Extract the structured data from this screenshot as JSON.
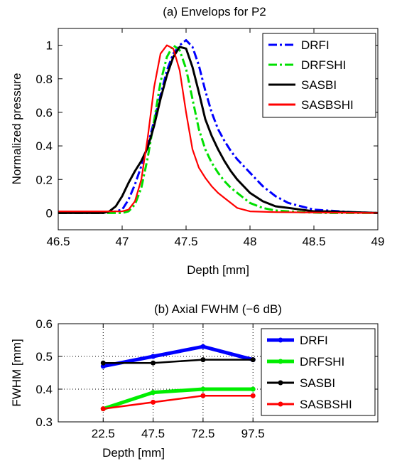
{
  "chart_data": [
    {
      "type": "line",
      "title": "(a) Envelops for P2",
      "xlabel": "Depth [mm]",
      "ylabel": "Normalized pressure",
      "xlim": [
        46.5,
        49
      ],
      "ylim": [
        -0.1,
        1.1
      ],
      "xticks": [
        46.5,
        47,
        47.5,
        48,
        48.5,
        49
      ],
      "yticks": [
        0,
        0.2,
        0.4,
        0.6,
        0.8,
        1
      ],
      "xtick_labels": [
        "46.5",
        "47",
        "47.5",
        "48",
        "48.5",
        "49"
      ],
      "ytick_labels": [
        "0",
        "0.2",
        "0.4",
        "0.6",
        "0.8",
        "1"
      ],
      "grid": false,
      "legend_position": "top-right",
      "series": [
        {
          "name": "DRFI",
          "color": "#0000ff",
          "dash": "dashdot",
          "x": [
            46.5,
            46.9,
            47.0,
            47.05,
            47.1,
            47.15,
            47.2,
            47.25,
            47.3,
            47.35,
            47.4,
            47.45,
            47.5,
            47.55,
            47.6,
            47.65,
            47.7,
            47.75,
            47.8,
            47.85,
            47.9,
            48.0,
            48.1,
            48.2,
            48.3,
            48.4,
            48.5,
            48.6,
            48.8,
            49.0
          ],
          "y": [
            0,
            0,
            0.02,
            0.08,
            0.17,
            0.28,
            0.4,
            0.55,
            0.7,
            0.85,
            0.95,
            1.0,
            1.03,
            0.99,
            0.88,
            0.73,
            0.6,
            0.5,
            0.43,
            0.37,
            0.32,
            0.24,
            0.16,
            0.1,
            0.06,
            0.04,
            0.02,
            0.015,
            0.005,
            0
          ]
        },
        {
          "name": "DRFSHI",
          "color": "#00e000",
          "dash": "dashdot",
          "x": [
            46.5,
            47.0,
            47.05,
            47.1,
            47.15,
            47.2,
            47.25,
            47.3,
            47.35,
            47.4,
            47.45,
            47.5,
            47.55,
            47.6,
            47.65,
            47.7,
            47.75,
            47.8,
            47.85,
            47.9,
            48.0,
            48.1,
            48.2,
            48.3,
            48.4,
            48.6,
            49.0
          ],
          "y": [
            0,
            0,
            0.01,
            0.05,
            0.15,
            0.33,
            0.55,
            0.78,
            0.93,
            1.0,
            0.97,
            0.86,
            0.68,
            0.5,
            0.38,
            0.3,
            0.24,
            0.19,
            0.15,
            0.12,
            0.06,
            0.03,
            0.015,
            0.01,
            0.005,
            0,
            0
          ]
        },
        {
          "name": "SASBI",
          "color": "#000000",
          "dash": "solid",
          "x": [
            46.5,
            46.85,
            46.9,
            46.95,
            47.0,
            47.05,
            47.1,
            47.15,
            47.2,
            47.25,
            47.3,
            47.35,
            47.4,
            47.45,
            47.5,
            47.55,
            47.6,
            47.65,
            47.7,
            47.75,
            47.8,
            47.85,
            47.9,
            48.0,
            48.1,
            48.2,
            48.3,
            48.4,
            48.5,
            48.6,
            48.8,
            49.0
          ],
          "y": [
            0,
            0,
            0.01,
            0.04,
            0.1,
            0.18,
            0.25,
            0.31,
            0.39,
            0.52,
            0.68,
            0.82,
            0.93,
            0.99,
            0.98,
            0.87,
            0.72,
            0.56,
            0.46,
            0.38,
            0.31,
            0.25,
            0.2,
            0.12,
            0.07,
            0.04,
            0.03,
            0.02,
            0.01,
            0.01,
            0.005,
            0
          ]
        },
        {
          "name": "SASBSHI",
          "color": "#ff0000",
          "dash": "solid",
          "x": [
            46.5,
            47.0,
            47.05,
            47.1,
            47.15,
            47.2,
            47.25,
            47.3,
            47.35,
            47.4,
            47.45,
            47.5,
            47.55,
            47.6,
            47.65,
            47.7,
            47.75,
            47.8,
            47.85,
            47.9,
            48.0,
            48.2,
            48.5,
            49.0
          ],
          "y": [
            0.01,
            0.01,
            0.02,
            0.07,
            0.2,
            0.45,
            0.75,
            0.95,
            1.0,
            0.98,
            0.85,
            0.6,
            0.38,
            0.27,
            0.21,
            0.16,
            0.12,
            0.09,
            0.06,
            0.03,
            0.01,
            0.005,
            0.003,
            0
          ]
        }
      ]
    },
    {
      "type": "line",
      "title": "(b) Axial FWHM (−6 dB)",
      "xlabel": "Depth [mm]",
      "ylabel": "FWHM [mm]",
      "xlim": [
        0,
        160
      ],
      "ylim": [
        0.3,
        0.6
      ],
      "xticks": [
        22.5,
        47.5,
        72.5,
        97.5
      ],
      "yticks": [
        0.3,
        0.4,
        0.5,
        0.6
      ],
      "xtick_labels": [
        "22.5",
        "47.5",
        "72.5",
        "97.5"
      ],
      "ytick_labels": [
        "0.3",
        "0.4",
        "0.5",
        "0.6"
      ],
      "grid": true,
      "legend_position": "right",
      "series": [
        {
          "name": "DRFI",
          "color": "#0000ff",
          "x": [
            22.5,
            47.5,
            72.5,
            97.5
          ],
          "y": [
            0.47,
            0.5,
            0.53,
            0.49
          ]
        },
        {
          "name": "DRFSHI",
          "color": "#00ee00",
          "x": [
            22.5,
            47.5,
            72.5,
            97.5
          ],
          "y": [
            0.34,
            0.39,
            0.4,
            0.4
          ]
        },
        {
          "name": "SASBI",
          "color": "#000000",
          "x": [
            22.5,
            47.5,
            72.5,
            97.5
          ],
          "y": [
            0.48,
            0.48,
            0.49,
            0.49
          ]
        },
        {
          "name": "SASBSHI",
          "color": "#ff0000",
          "x": [
            22.5,
            47.5,
            72.5,
            97.5
          ],
          "y": [
            0.34,
            0.36,
            0.38,
            0.38
          ]
        }
      ]
    }
  ]
}
